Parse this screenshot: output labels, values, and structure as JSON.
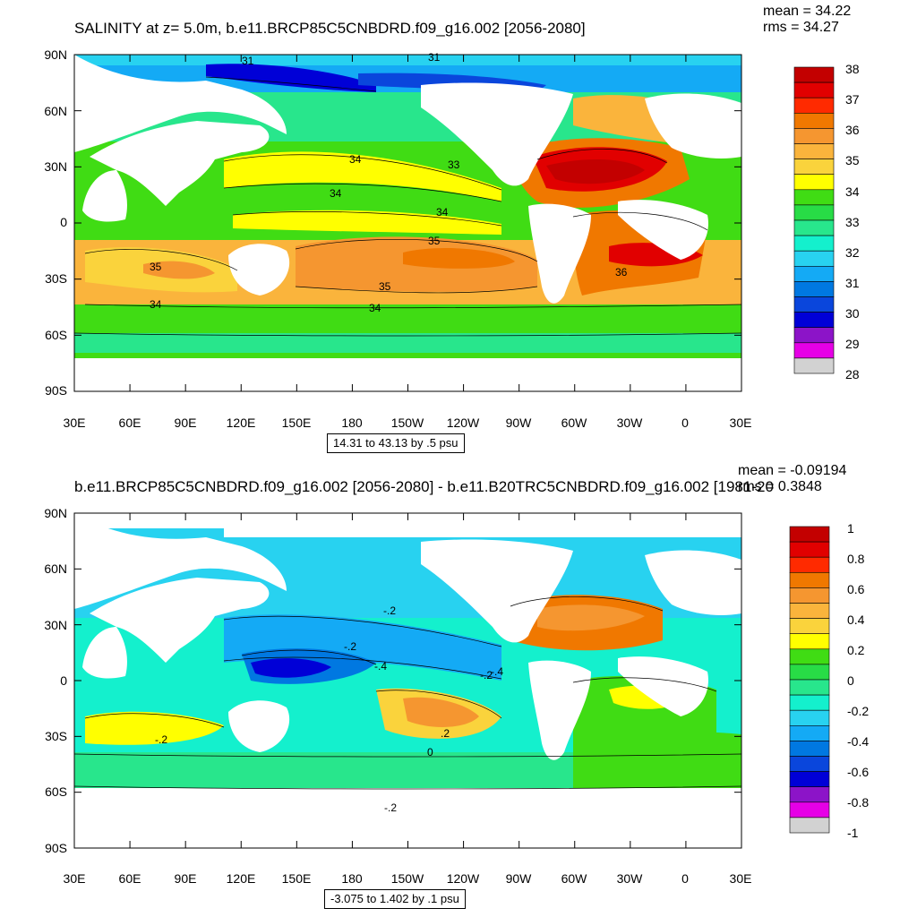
{
  "panel1": {
    "title": "SALINITY at z=   5.0m, b.e11.BRCP85C5CNBDRD.f09_g16.002 [2056-2080]",
    "mean": "mean = 34.22",
    "rms": "rms = 34.27",
    "range": "14.31 to 43.13 by .5 psu",
    "colorbar": {
      "labels": [
        "38",
        "37",
        "36",
        "35",
        "34",
        "33",
        "32",
        "31",
        "30",
        "29",
        "28"
      ],
      "colors": [
        "#c30000",
        "#e10000",
        "#ff2a00",
        "#f07800",
        "#f59630",
        "#fab43c",
        "#fad33c",
        "#ffff00",
        "#40dc14",
        "#28dc46",
        "#28e68c",
        "#14f0cd",
        "#28d2f0",
        "#14aaf5",
        "#0078e1",
        "#0a46dc",
        "#0000d7",
        "#8c14c8",
        "#e600e6",
        "#d2d2d2",
        "#707070"
      ],
      "min": 28,
      "max": 38
    },
    "contour_labels": [
      "31",
      "31",
      "34",
      "33",
      "34",
      "34",
      "35",
      "35",
      "36",
      "35",
      "34",
      "34"
    ]
  },
  "panel2": {
    "title": "b.e11.BRCP85C5CNBDRD.f09_g16.002 [2056-2080] - b.e11.B20TRC5CNBDRD.f09_g16.002 [1981-20",
    "mean": "mean = -0.09194",
    "rms": "rms = 0.3848",
    "range": "-3.075 to 1.402 by .1 psu",
    "colorbar": {
      "labels": [
        "1",
        "0.8",
        "0.6",
        "0.4",
        "0.2",
        "0",
        "-0.2",
        "-0.4",
        "-0.6",
        "-0.8",
        "-1"
      ],
      "colors": [
        "#c30000",
        "#e10000",
        "#ff2a00",
        "#f07800",
        "#f59630",
        "#fab43c",
        "#fad33c",
        "#ffff00",
        "#40dc14",
        "#28dc46",
        "#28e68c",
        "#14f0cd",
        "#28d2f0",
        "#14aaf5",
        "#0078e1",
        "#0a46dc",
        "#0000d7",
        "#8c14c8",
        "#e600e6",
        "#d2d2d2",
        "#707070"
      ],
      "min": -1,
      "max": 1
    },
    "contour_labels": [
      "-.2",
      "-.2",
      "-.4",
      "-.2",
      "-.4",
      "-.2",
      ".2",
      "0",
      "-.2"
    ]
  },
  "axes": {
    "lat_labels": [
      "90N",
      "60N",
      "30N",
      "0",
      "30S",
      "60S",
      "90S"
    ],
    "lon_labels": [
      "30E",
      "60E",
      "90E",
      "120E",
      "150E",
      "180",
      "150W",
      "120W",
      "90W",
      "60W",
      "30W",
      "0",
      "30E"
    ]
  },
  "colors": {
    "land": "#ffffff",
    "frame": "#000000"
  }
}
